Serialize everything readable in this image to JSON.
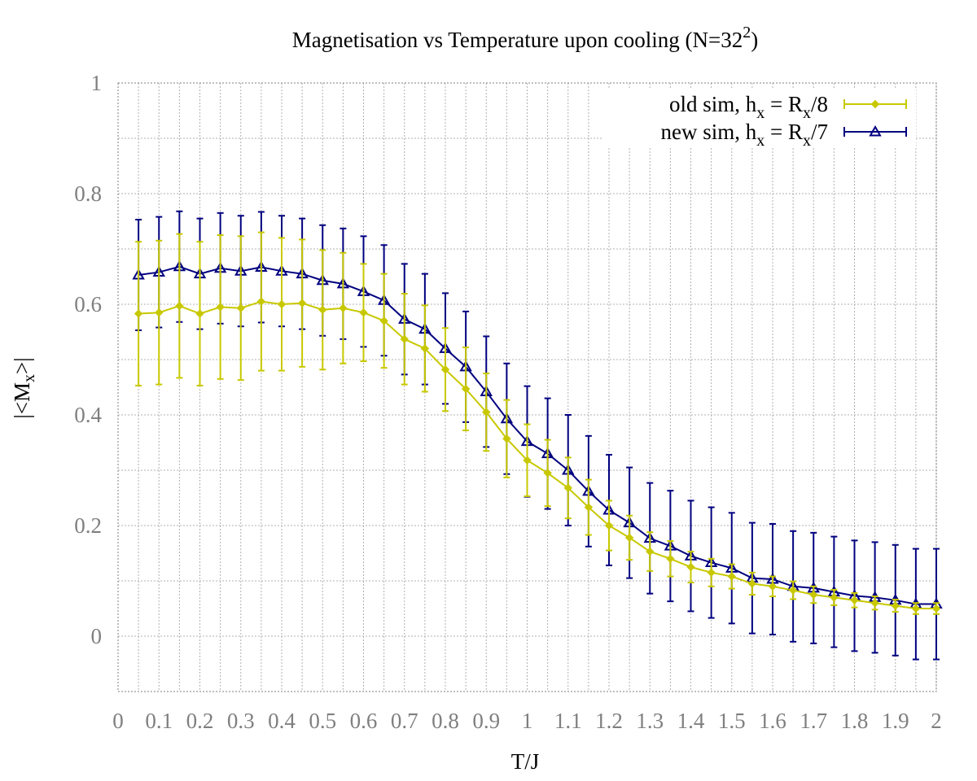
{
  "chart_data": {
    "type": "line",
    "title": "Magnetisation vs Temperature upon cooling (N=32²)",
    "title_parts": {
      "main": "Magnetisation vs Temperature upon cooling (N=32",
      "sup": "2",
      "close": ")"
    },
    "xlabel": "T/J",
    "ylabel_parts": {
      "pre": "|<M",
      "sub": "x",
      "post": ">|"
    },
    "xlim": [
      0,
      2
    ],
    "ylim": [
      -0.1,
      1
    ],
    "x_ticks": [
      "0",
      "0.1",
      "0.2",
      "0.3",
      "0.4",
      "0.5",
      "0.6",
      "0.7",
      "0.8",
      "0.9",
      "1",
      "1.1",
      "1.2",
      "1.3",
      "1.4",
      "1.5",
      "1.6",
      "1.7",
      "1.8",
      "1.9",
      "2"
    ],
    "y_ticks": [
      "0",
      "0.2",
      "0.4",
      "0.6",
      "0.8",
      "1"
    ],
    "grid": true,
    "legend_position": "top-right",
    "x": [
      0.05,
      0.1,
      0.15,
      0.2,
      0.25,
      0.3,
      0.35,
      0.4,
      0.45,
      0.5,
      0.55,
      0.6,
      0.65,
      0.7,
      0.75,
      0.8,
      0.85,
      0.9,
      0.95,
      1.0,
      1.05,
      1.1,
      1.15,
      1.2,
      1.25,
      1.3,
      1.35,
      1.4,
      1.45,
      1.5,
      1.55,
      1.6,
      1.65,
      1.7,
      1.75,
      1.8,
      1.85,
      1.9,
      1.95,
      2.0
    ],
    "series": [
      {
        "name_parts": {
          "a": "old sim, h",
          "sub1": "x",
          "b": " = R",
          "sub2": "x",
          "c": "/8"
        },
        "color": "#c8c800",
        "marker": "diamond",
        "values": [
          0.583,
          0.585,
          0.597,
          0.583,
          0.595,
          0.593,
          0.605,
          0.6,
          0.602,
          0.59,
          0.593,
          0.585,
          0.57,
          0.537,
          0.52,
          0.482,
          0.447,
          0.405,
          0.357,
          0.318,
          0.295,
          0.268,
          0.233,
          0.2,
          0.178,
          0.153,
          0.14,
          0.125,
          0.115,
          0.108,
          0.095,
          0.09,
          0.083,
          0.075,
          0.07,
          0.065,
          0.06,
          0.055,
          0.05,
          0.05
        ],
        "errors": [
          0.13,
          0.13,
          0.13,
          0.13,
          0.13,
          0.13,
          0.125,
          0.12,
          0.115,
          0.108,
          0.1,
          0.088,
          0.085,
          0.082,
          0.078,
          0.075,
          0.075,
          0.07,
          0.07,
          0.065,
          0.06,
          0.055,
          0.05,
          0.045,
          0.04,
          0.035,
          0.032,
          0.028,
          0.025,
          0.022,
          0.02,
          0.018,
          0.016,
          0.015,
          0.014,
          0.013,
          0.012,
          0.011,
          0.01,
          0.01
        ]
      },
      {
        "name_parts": {
          "a": "new sim, h",
          "sub1": "x",
          "b": " = R",
          "sub2": "x",
          "c": "/7"
        },
        "color": "#00007f",
        "marker": "triangle",
        "values": [
          0.653,
          0.658,
          0.668,
          0.655,
          0.665,
          0.66,
          0.667,
          0.66,
          0.655,
          0.643,
          0.637,
          0.623,
          0.607,
          0.573,
          0.555,
          0.52,
          0.487,
          0.442,
          0.393,
          0.352,
          0.33,
          0.3,
          0.262,
          0.228,
          0.205,
          0.177,
          0.163,
          0.145,
          0.133,
          0.123,
          0.105,
          0.103,
          0.09,
          0.087,
          0.08,
          0.073,
          0.07,
          0.065,
          0.058,
          0.058
        ]
      }
    ]
  }
}
